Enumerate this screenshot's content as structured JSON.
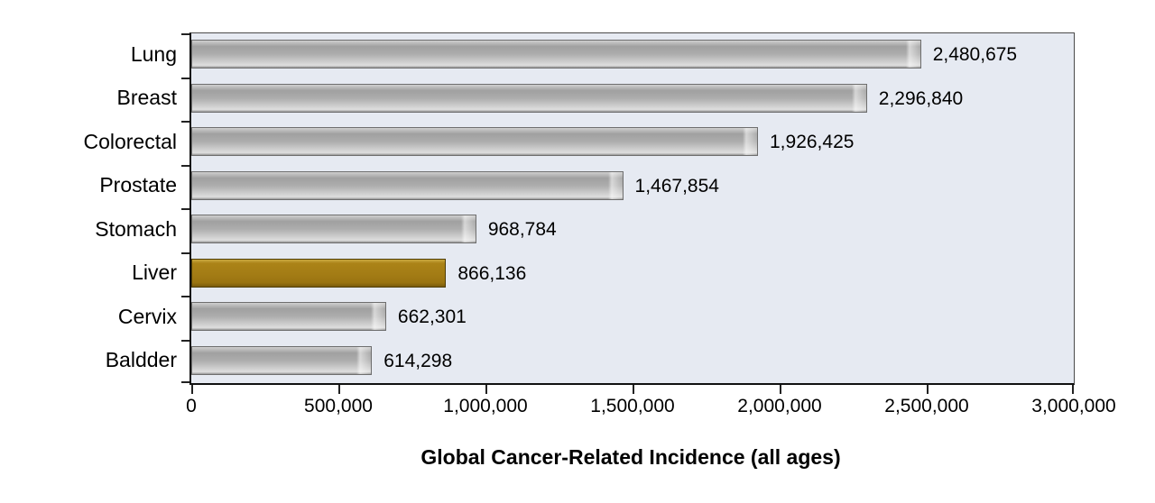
{
  "chart_data": {
    "type": "bar",
    "orientation": "horizontal",
    "title": "",
    "xlabel": "Global Cancer-Related Incidence (all ages)",
    "ylabel": "",
    "categories": [
      "Lung",
      "Breast",
      "Colorectal",
      "Prostate",
      "Stomach",
      "Liver",
      "Cervix",
      "Baldder"
    ],
    "values": [
      2480675,
      2296840,
      1926425,
      1467854,
      968784,
      866136,
      662301,
      614298
    ],
    "value_labels": [
      "2,480,675",
      "2,296,840",
      "1,926,425",
      "1,467,854",
      "968,784",
      "866,136",
      "662,301",
      "614,298"
    ],
    "highlight_index": 5,
    "highlighted_category": "Liver",
    "xlim": [
      0,
      3000000
    ],
    "x_ticks": [
      0,
      500000,
      1000000,
      1500000,
      2000000,
      2500000,
      3000000
    ],
    "x_tick_labels": [
      "0",
      "500,000",
      "1,000,000",
      "1,500,000",
      "2,000,000",
      "2,500,000",
      "3,000,000"
    ],
    "grid": false,
    "legend": false,
    "colors": {
      "bar_fill": "#b4b4b4",
      "bar_highlight_fill": "#a37c15",
      "plot_background": "#e6eaf2",
      "axis": "#111111",
      "text": "#000000",
      "page_background": "#ffffff"
    }
  }
}
